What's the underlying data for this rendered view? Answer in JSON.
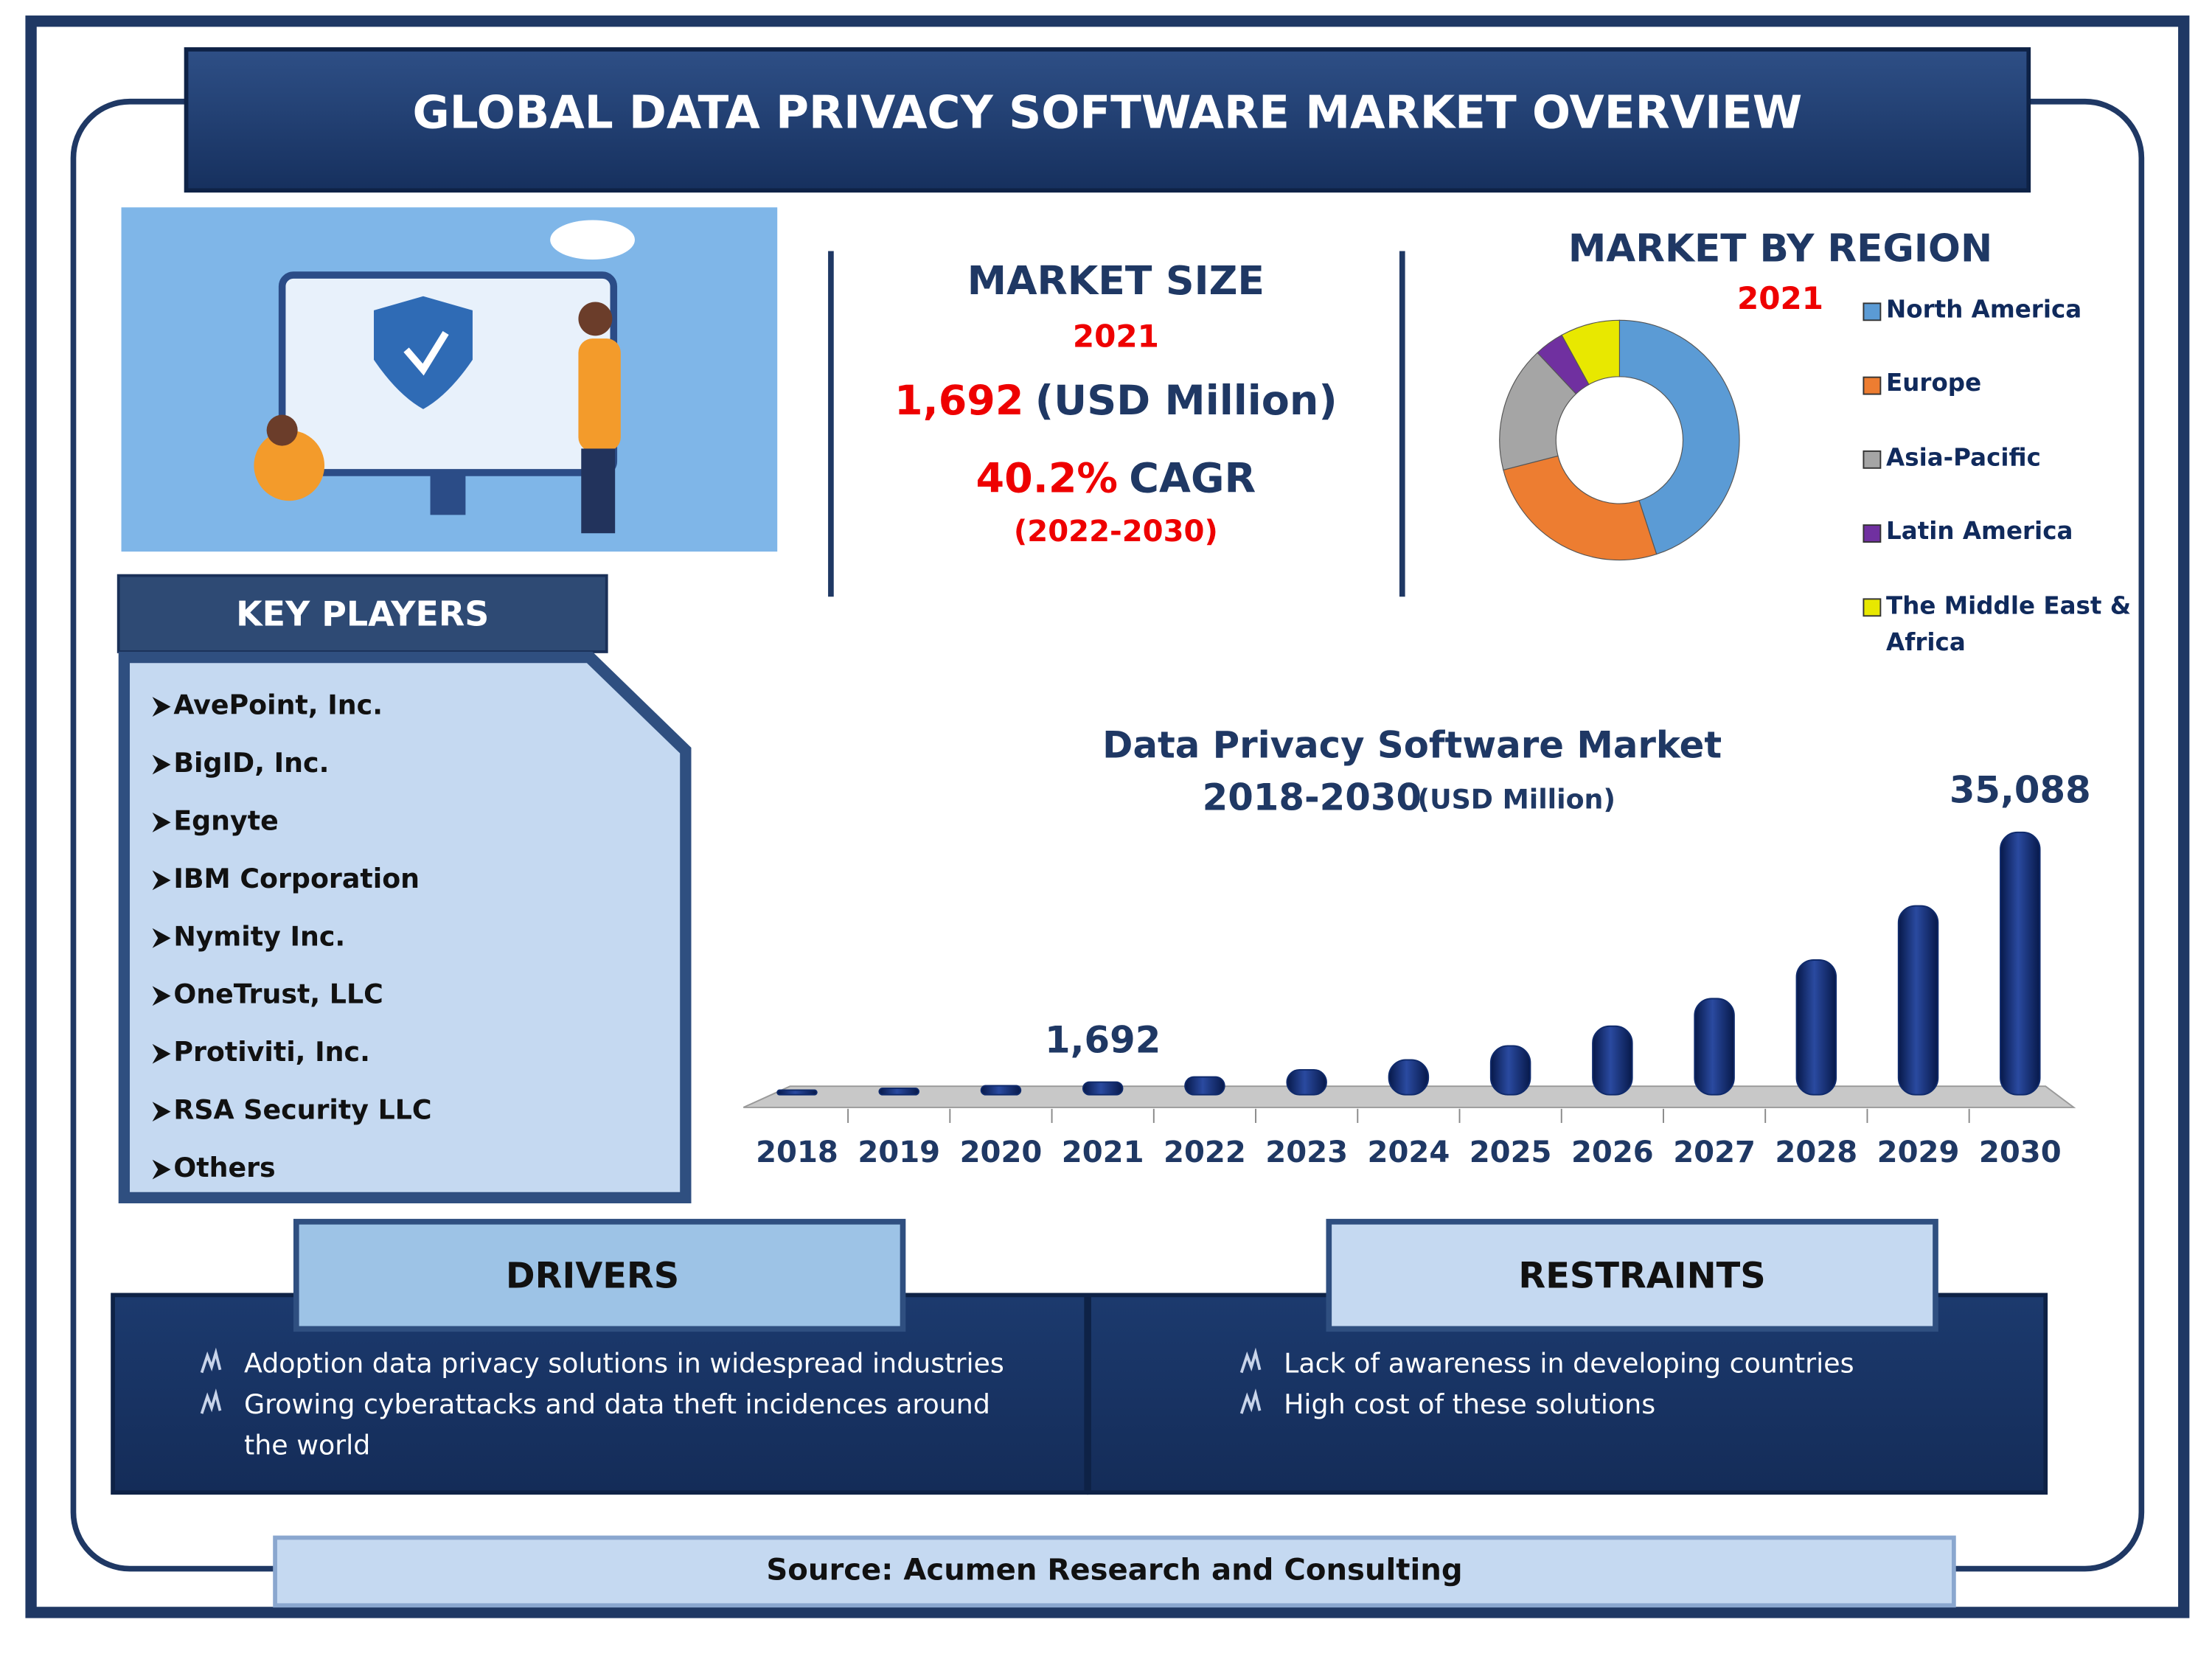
{
  "header": {
    "title": "GLOBAL DATA PRIVACY SOFTWARE MARKET OVERVIEW"
  },
  "market_size": {
    "title": "MARKET SIZE",
    "year": "2021",
    "value": "1,692",
    "unit": "(USD Million)",
    "cagr": "40.2%",
    "cagr_label": "CAGR",
    "period": "(2022-2030)"
  },
  "key_players": {
    "title": "KEY PLAYERS",
    "items": [
      "AvePoint, Inc.",
      "BigID, Inc.",
      "Egnyte",
      "IBM Corporation",
      "Nymity Inc.",
      "OneTrust, LLC",
      "Protiviti, Inc.",
      "RSA Security LLC",
      "Others"
    ]
  },
  "drivers": {
    "title": "DRIVERS",
    "items": [
      "Adoption data privacy solutions in widespread industries",
      "Growing cyberattacks and data theft incidences around the world"
    ]
  },
  "restraints": {
    "title": "RESTRAINTS",
    "items": [
      "Lack of awareness in developing countries",
      "High cost of these solutions"
    ]
  },
  "source": "Source: Acumen Research and Consulting",
  "chart_data": [
    {
      "type": "pie",
      "donut": true,
      "title": "MARKET BY REGION",
      "subtitle": "2021",
      "categories": [
        "North America",
        "Europe",
        "Asia-Pacific",
        "Latin America",
        "The Middle East & Africa"
      ],
      "values": [
        45,
        26,
        17,
        4,
        8
      ],
      "colors": [
        "#5b9bd5",
        "#ed7d31",
        "#a5a5a5",
        "#7030a0",
        "#e8e800"
      ]
    },
    {
      "type": "bar",
      "title": "Data Privacy Software Market",
      "subtitle": "2018-2030",
      "unit": "(USD Million)",
      "categories": [
        "2018",
        "2019",
        "2020",
        "2021",
        "2022",
        "2023",
        "2024",
        "2025",
        "2026",
        "2027",
        "2028",
        "2029",
        "2030"
      ],
      "values": [
        614,
        861,
        1207,
        1692,
        2372,
        3326,
        4663,
        6537,
        9165,
        12849,
        18014,
        25256,
        35088
      ],
      "value_labels": [
        null,
        null,
        null,
        "1,692",
        null,
        null,
        null,
        null,
        null,
        null,
        null,
        null,
        "35,088"
      ],
      "color": "#0f2a6b"
    }
  ]
}
